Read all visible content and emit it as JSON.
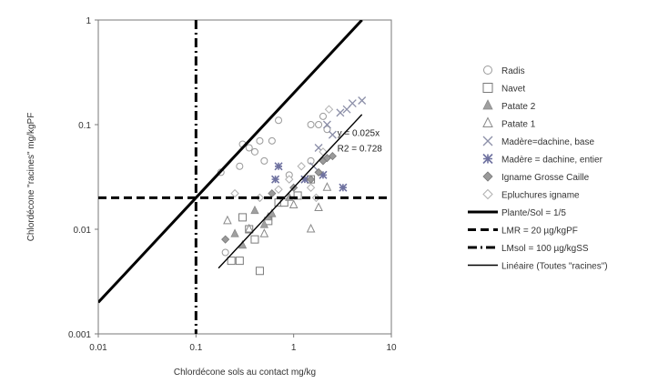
{
  "chart_data": {
    "type": "scatter",
    "title": "",
    "xlabel": "Chlordécone sols au contact   mg/kg",
    "ylabel": "Chlordécone \"racines\" mg/kgPF",
    "xscale": "log",
    "yscale": "log",
    "xlim": [
      0.01,
      10
    ],
    "ylim": [
      0.001,
      1
    ],
    "x_ticks": [
      "0.01",
      "0.1",
      "1",
      "10"
    ],
    "y_ticks": [
      "0.001",
      "0.01",
      "0.1",
      "1"
    ],
    "grid": false,
    "legend_position": "right",
    "annotation": [
      "y = 0.025x",
      "R2 = 0.728"
    ],
    "series": [
      {
        "name": "Radis",
        "marker": "circle-open",
        "color": "#9a9a9a",
        "points": [
          [
            0.18,
            0.035
          ],
          [
            0.28,
            0.04
          ],
          [
            0.35,
            0.06
          ],
          [
            0.4,
            0.055
          ],
          [
            0.45,
            0.07
          ],
          [
            0.5,
            0.045
          ],
          [
            0.3,
            0.065
          ],
          [
            0.7,
            0.11
          ],
          [
            0.6,
            0.07
          ],
          [
            1.5,
            0.1
          ],
          [
            2.0,
            0.12
          ],
          [
            1.8,
            0.1
          ],
          [
            1.5,
            0.045
          ],
          [
            2.2,
            0.09
          ],
          [
            0.2,
            0.006
          ],
          [
            0.9,
            0.033
          ]
        ]
      },
      {
        "name": "Navet",
        "marker": "square-open",
        "color": "#7a7a7a",
        "points": [
          [
            0.23,
            0.005
          ],
          [
            0.28,
            0.005
          ],
          [
            0.3,
            0.013
          ],
          [
            0.35,
            0.01
          ],
          [
            0.45,
            0.004
          ],
          [
            0.4,
            0.008
          ],
          [
            0.55,
            0.012
          ],
          [
            0.7,
            0.018
          ],
          [
            0.8,
            0.018
          ],
          [
            1.1,
            0.021
          ],
          [
            1.5,
            0.03
          ]
        ]
      },
      {
        "name": "Patate 2",
        "marker": "triangle-filled",
        "color": "#a0a0a0",
        "points": [
          [
            0.25,
            0.009
          ],
          [
            0.3,
            0.007
          ],
          [
            0.4,
            0.015
          ],
          [
            0.5,
            0.011
          ],
          [
            0.55,
            0.013
          ],
          [
            0.6,
            0.014
          ],
          [
            0.9,
            0.02
          ]
        ]
      },
      {
        "name": "Patate 1",
        "marker": "triangle-open",
        "color": "#8a8a8a",
        "points": [
          [
            0.21,
            0.012
          ],
          [
            0.35,
            0.01
          ],
          [
            0.5,
            0.009
          ],
          [
            1.0,
            0.017
          ],
          [
            1.5,
            0.01
          ],
          [
            1.8,
            0.016
          ],
          [
            2.2,
            0.025
          ]
        ]
      },
      {
        "name": "Madère=dachine, base",
        "marker": "x",
        "color": "#8c8fa8",
        "points": [
          [
            1.8,
            0.06
          ],
          [
            2.2,
            0.1
          ],
          [
            3.0,
            0.13
          ],
          [
            4.0,
            0.16
          ],
          [
            5.0,
            0.17
          ],
          [
            2.5,
            0.08
          ],
          [
            3.5,
            0.14
          ],
          [
            1.6,
            0.04
          ]
        ]
      },
      {
        "name": "Madère = dachine, entier",
        "marker": "asterisk",
        "color": "#6f72a0",
        "points": [
          [
            0.7,
            0.04
          ],
          [
            1.3,
            0.03
          ],
          [
            2.0,
            0.033
          ],
          [
            3.2,
            0.025
          ],
          [
            0.65,
            0.03
          ]
        ]
      },
      {
        "name": "Igname Grosse Caille",
        "marker": "diamond-filled",
        "color": "#9a9a9a",
        "points": [
          [
            0.2,
            0.008
          ],
          [
            0.45,
            0.02
          ],
          [
            1.0,
            0.025
          ],
          [
            1.5,
            0.03
          ],
          [
            2.0,
            0.045
          ],
          [
            2.5,
            0.05
          ],
          [
            1.8,
            0.035
          ],
          [
            0.6,
            0.022
          ],
          [
            2.2,
            0.048
          ]
        ]
      },
      {
        "name": "Epluchures igname",
        "marker": "diamond-open",
        "color": "#b0b0b0",
        "points": [
          [
            0.25,
            0.022
          ],
          [
            0.45,
            0.02
          ],
          [
            0.9,
            0.03
          ],
          [
            1.5,
            0.025
          ],
          [
            2.0,
            0.055
          ],
          [
            2.3,
            0.14
          ],
          [
            1.7,
            0.02
          ],
          [
            0.7,
            0.024
          ],
          [
            1.2,
            0.04
          ]
        ]
      }
    ],
    "lines": [
      {
        "name": "Plante/Sol = 1/5",
        "style": "solid-thick",
        "color": "#000000",
        "slope": 0.2,
        "x_range": [
          0.01,
          5
        ]
      },
      {
        "name": "LMR = 20 µg/kgPF",
        "style": "dashed-thick",
        "color": "#000000",
        "y": 0.02
      },
      {
        "name": "LMsol = 100 µg/kgSS",
        "style": "dashdot-thick",
        "color": "#000000",
        "x": 0.1
      },
      {
        "name": "Linéaire (Toutes \"racines\")",
        "style": "solid-thin",
        "color": "#000000",
        "slope": 0.025,
        "x_range": [
          0.17,
          5
        ]
      }
    ]
  }
}
